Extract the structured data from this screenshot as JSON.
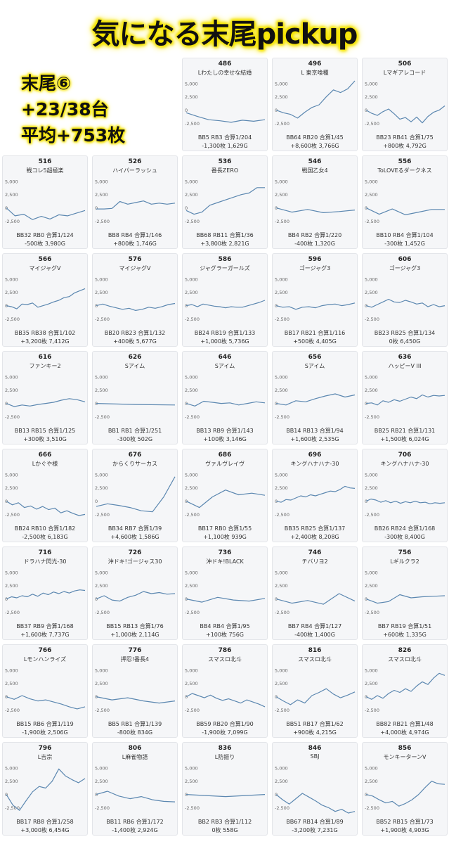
{
  "title": "気になる末尾pickup",
  "summary": {
    "line1": "末尾⑥",
    "line2": "+23/38台",
    "line3": "平均+753枚"
  },
  "line_color": "#5b87b0",
  "chart_data": {
    "type": "line",
    "ylim": [
      -3500,
      5500
    ],
    "yticks": [
      "5,000",
      "2,500",
      "0",
      "-2,500"
    ],
    "panels": [
      {
        "num": "486",
        "machine": "Lわたしの幸せな結婚",
        "stats": "BB5 RB3 合算1/204",
        "result": "-1,300枚 1,629G",
        "values": [
          -500,
          -1200,
          -1800,
          -2000,
          -2300,
          -1900,
          -2100,
          -1800
        ],
        "n": 1629
      },
      {
        "num": "496",
        "machine": "L 東京喰種",
        "stats": "BB64 RB20 合算1/45",
        "result": "+8,600枚 3,766G",
        "values": [
          0,
          -500,
          -800,
          -1500,
          -400,
          500,
          1000,
          2500,
          3800,
          3300,
          4000,
          5500
        ],
        "n": 3766
      },
      {
        "num": "506",
        "machine": "Lマギアレコード",
        "stats": "BB23 RB41 合算1/75",
        "result": "+800枚 4,792G",
        "values": [
          0,
          -600,
          -1000,
          -300,
          200,
          -700,
          -1700,
          -1400,
          -2200,
          -1300,
          -2400,
          -1200,
          -400,
          0,
          800
        ],
        "n": 4792
      },
      {
        "num": "516",
        "machine": "戦コレ5超極楽",
        "stats": "BB32 RB0 合算1/124",
        "result": "-500枚 3,980G",
        "values": [
          0,
          -1500,
          -1200,
          -2200,
          -1600,
          -2100,
          -1300,
          -1500,
          -1000,
          -500
        ],
        "n": 3980
      },
      {
        "num": "526",
        "machine": "ハイパーラッシュ",
        "stats": "BB8 RB4 合算1/146",
        "result": "+800枚 1,746G",
        "values": [
          -200,
          -200,
          -100,
          1200,
          700,
          1000,
          1300,
          700,
          900,
          700,
          900
        ],
        "n": 1746
      },
      {
        "num": "536",
        "machine": "番長ZERO",
        "stats": "BB68 RB11 合算1/36",
        "result": "+3,800枚 2,821G",
        "values": [
          -500,
          -1200,
          -800,
          500,
          1000,
          1500,
          2000,
          2500,
          2800,
          3800,
          3800
        ],
        "n": 2821
      },
      {
        "num": "546",
        "machine": "戦国乙女4",
        "stats": "BB4 RB2 合算1/220",
        "result": "-400枚 1,320G",
        "values": [
          0,
          -800,
          -300,
          -900,
          -700,
          -400
        ],
        "n": 1320
      },
      {
        "num": "556",
        "machine": "ToLOVEるダークネス",
        "stats": "BB10 RB4 合算1/104",
        "result": "-300枚 1,452G",
        "values": [
          0,
          -1200,
          -200,
          -1300,
          -800,
          -300,
          -300
        ],
        "n": 1452
      },
      {
        "num": "566",
        "machine": "マイジャグV",
        "stats": "BB35 RB38 合算1/102",
        "result": "+3,200枚 7,412G",
        "values": [
          0,
          -200,
          -600,
          300,
          200,
          500,
          -300,
          0,
          300,
          700,
          1000,
          1500,
          1700,
          2400,
          2800,
          3200
        ],
        "n": 7412
      },
      {
        "num": "576",
        "machine": "マイジャグV",
        "stats": "BB20 RB23 合算1/132",
        "result": "+400枚 5,677G",
        "values": [
          0,
          300,
          -100,
          -400,
          -700,
          -500,
          -900,
          -700,
          -300,
          -500,
          -200,
          200,
          400
        ],
        "n": 5677
      },
      {
        "num": "586",
        "machine": "ジャグラーガールズ",
        "stats": "BB24 RB19 合算1/133",
        "result": "+1,000枚 5,736G",
        "values": [
          0,
          200,
          -200,
          300,
          100,
          -100,
          -200,
          -400,
          -200,
          -300,
          -300,
          0,
          300,
          600,
          1000
        ],
        "n": 5736
      },
      {
        "num": "596",
        "machine": "ゴージャグ3",
        "stats": "BB17 RB21 合算1/116",
        "result": "+500枚 4,405G",
        "values": [
          0,
          -300,
          -200,
          -700,
          -300,
          -200,
          -400,
          0,
          200,
          300,
          0,
          200,
          500
        ],
        "n": 4405
      },
      {
        "num": "606",
        "machine": "ゴージャグ3",
        "stats": "BB23 RB25 合算1/134",
        "result": "0枚 6,450G",
        "values": [
          0,
          -300,
          200,
          700,
          1200,
          700,
          600,
          1000,
          700,
          300,
          500,
          -200,
          200,
          -200,
          0
        ],
        "n": 6450
      },
      {
        "num": "616",
        "machine": "ファンキー2",
        "stats": "BB13 RB15 合算1/125",
        "result": "+300枚 3,510G",
        "values": [
          0,
          -600,
          -300,
          -500,
          -200,
          0,
          200,
          600,
          900,
          700,
          300
        ],
        "n": 3510
      },
      {
        "num": "626",
        "machine": "Sアイム",
        "stats": "BB1 RB1 合算1/251",
        "result": "-300枚 502G",
        "values": [
          0,
          -200,
          -300
        ],
        "n": 502
      },
      {
        "num": "646",
        "machine": "Sアイム",
        "stats": "BB13 RB9 合算1/143",
        "result": "+100枚 3,146G",
        "values": [
          0,
          -500,
          400,
          200,
          0,
          100,
          -300,
          0,
          300,
          100
        ],
        "n": 3146
      },
      {
        "num": "656",
        "machine": "Sアイム",
        "stats": "BB14 RB13 合算1/94",
        "result": "+1,600枚 2,535G",
        "values": [
          0,
          -300,
          500,
          300,
          900,
          1400,
          1800,
          1200,
          1600
        ],
        "n": 2535
      },
      {
        "num": "636",
        "machine": "ハッピーV III",
        "stats": "BB25 RB21 合算1/131",
        "result": "+1,500枚 6,024G",
        "values": [
          0,
          100,
          -300,
          500,
          200,
          700,
          400,
          800,
          1200,
          900,
          1600,
          1200,
          1500,
          1400,
          1500
        ],
        "n": 6024
      },
      {
        "num": "666",
        "machine": "Lかぐや様",
        "stats": "BB24 RB10 合算1/182",
        "result": "-2,500枚 6,183G",
        "values": [
          0,
          -700,
          -300,
          -1200,
          -900,
          -1500,
          -1000,
          -1600,
          -1300,
          -2200,
          -1800,
          -2300,
          -2700,
          -2500
        ],
        "n": 6183
      },
      {
        "num": "676",
        "machine": "からくりサーカス",
        "stats": "BB34 RB7 合算1/39",
        "result": "+4,600枚 1,586G",
        "values": [
          -1000,
          -500,
          -800,
          -1200,
          -1800,
          -2000,
          800,
          4600
        ],
        "n": 1586
      },
      {
        "num": "686",
        "machine": "ヴァルヴレイヴ",
        "stats": "BB17 RB0 合算1/55",
        "result": "+1,100枚 939G",
        "values": [
          0,
          -1200,
          800,
          2100,
          1200,
          1500,
          1100
        ],
        "n": 939
      },
      {
        "num": "696",
        "machine": "キングハナハナ-30",
        "stats": "BB35 RB25 合算1/137",
        "result": "+2,400枚 8,208G",
        "values": [
          0,
          -200,
          300,
          200,
          600,
          1000,
          800,
          1200,
          1000,
          1300,
          1600,
          1900,
          1800,
          2200,
          2800,
          2500,
          2400
        ],
        "n": 8208
      },
      {
        "num": "706",
        "machine": "キングハナハナ-30",
        "stats": "BB26 RB24 合算1/168",
        "result": "-300枚 8,400G",
        "values": [
          0,
          400,
          200,
          -200,
          100,
          -300,
          0,
          -400,
          -100,
          -300,
          0,
          -300,
          -200,
          -500,
          -300,
          -400,
          -300
        ],
        "n": 8400
      },
      {
        "num": "716",
        "machine": "ドラハナ閃光-30",
        "stats": "BB37 RB9 合算1/168",
        "result": "+1,600枚 7,737G",
        "values": [
          0,
          400,
          200,
          600,
          400,
          900,
          500,
          1100,
          800,
          1300,
          1000,
          1400,
          1100,
          1500,
          1700,
          1600
        ],
        "n": 7737
      },
      {
        "num": "726",
        "machine": "沖ドキ!ゴージャス30",
        "stats": "BB15 RB13 合算1/76",
        "result": "+1,000枚 2,114G",
        "values": [
          0,
          600,
          -200,
          -400,
          300,
          700,
          1400,
          1000,
          1200,
          900,
          1000
        ],
        "n": 2114
      },
      {
        "num": "736",
        "machine": "沖ドキ!BLACK",
        "stats": "BB4 RB4 合算1/95",
        "result": "+100枚 756G",
        "values": [
          0,
          -600,
          300,
          -200,
          -400,
          100
        ],
        "n": 756
      },
      {
        "num": "746",
        "machine": "チバリヨ2",
        "stats": "BB7 RB4 合算1/127",
        "result": "-400枚 1,400G",
        "values": [
          0,
          -800,
          -300,
          -1000,
          1000,
          -400
        ],
        "n": 1400
      },
      {
        "num": "756",
        "machine": "Lギルクラ2",
        "stats": "BB7 RB19 合算1/51",
        "result": "+600枚 1,335G",
        "values": [
          0,
          -800,
          -500,
          800,
          200,
          400,
          500,
          600
        ],
        "n": 1335
      },
      {
        "num": "766",
        "machine": "Lモンハンライズ",
        "stats": "BB15 RB6 合算1/119",
        "result": "-1,900枚 2,506G",
        "values": [
          0,
          -500,
          200,
          -400,
          -800,
          -600,
          -1000,
          -1400,
          -1900,
          -2300,
          -1900
        ],
        "n": 2506
      },
      {
        "num": "776",
        "machine": "押忍!番長4",
        "stats": "BB5 RB1 合算1/139",
        "result": "-800枚 834G",
        "values": [
          0,
          -600,
          -200,
          -800,
          -1200,
          -800
        ],
        "n": 834
      },
      {
        "num": "786",
        "machine": "スマスロ北斗",
        "stats": "BB59 RB20 合算1/90",
        "result": "-1,900枚 7,099G",
        "values": [
          0,
          600,
          200,
          -200,
          300,
          -300,
          -700,
          -400,
          -800,
          -1200,
          -600,
          -1000,
          -1400,
          -1900
        ],
        "n": 7099
      },
      {
        "num": "816",
        "machine": "スマスロ北斗",
        "stats": "BB51 RB17 合算1/62",
        "result": "+900枚 4,215G",
        "values": [
          0,
          -800,
          -1500,
          -600,
          -1200,
          200,
          800,
          1500,
          500,
          -200,
          300,
          900
        ],
        "n": 4215
      },
      {
        "num": "826",
        "machine": "スマスロ北斗",
        "stats": "BB82 RB21 合算1/48",
        "result": "+4,000枚 4,974G",
        "values": [
          0,
          -500,
          200,
          -300,
          600,
          1200,
          800,
          1500,
          1000,
          2000,
          2800,
          2300,
          3500,
          4400,
          4000
        ],
        "n": 4974
      },
      {
        "num": "796",
        "machine": "L吉宗",
        "stats": "BB17 RB8 合算1/258",
        "result": "+3,000枚 6,454G",
        "values": [
          0,
          -2000,
          -3000,
          -1200,
          500,
          1500,
          1200,
          2500,
          4800,
          3500,
          2800,
          2200,
          3000
        ],
        "n": 6454
      },
      {
        "num": "806",
        "machine": "L麻雀物語",
        "stats": "BB11 RB6 合算1/172",
        "result": "-1,400枚 2,924G",
        "values": [
          0,
          600,
          -300,
          -800,
          -400,
          -1000,
          -1300,
          -1400
        ],
        "n": 2924
      },
      {
        "num": "836",
        "machine": "L防振り",
        "stats": "BB2 RB3 合算1/112",
        "result": "0枚 558G",
        "values": [
          0,
          -400,
          0
        ],
        "n": 558
      },
      {
        "num": "846",
        "machine": "SBJ",
        "stats": "BB67 RB14 合算1/89",
        "result": "-3,200枚 7,231G",
        "values": [
          0,
          -1000,
          -1800,
          -800,
          200,
          -500,
          -1200,
          -2000,
          -2500,
          -3200,
          -2800,
          -3500,
          -3200
        ],
        "n": 7231
      },
      {
        "num": "856",
        "machine": "モンキーターンV",
        "stats": "BB52 RB15 合算1/73",
        "result": "+1,900枚 4,903G",
        "values": [
          0,
          -300,
          -1000,
          -1600,
          -1300,
          -2200,
          -1700,
          -1000,
          0,
          1300,
          2500,
          2000,
          1900
        ],
        "n": 4903
      }
    ]
  }
}
